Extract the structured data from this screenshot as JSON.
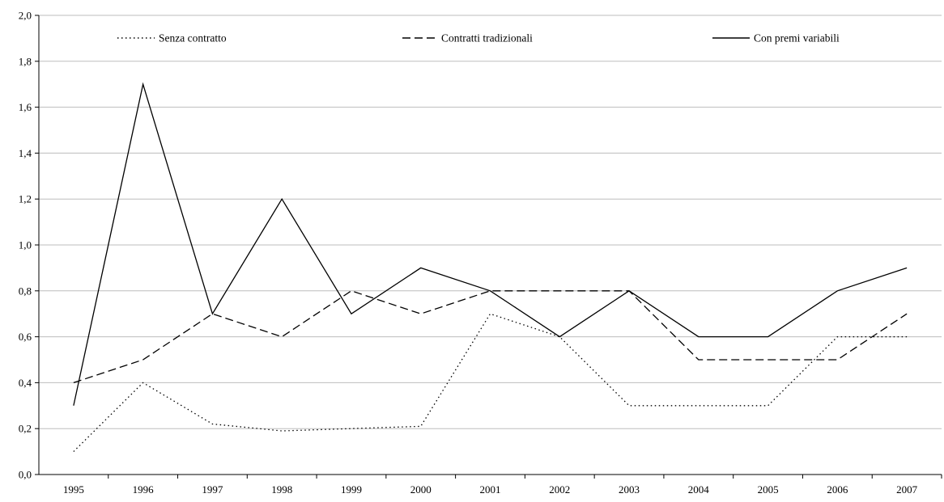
{
  "chart_data": {
    "type": "line",
    "title": "",
    "xlabel": "",
    "ylabel": "",
    "categories": [
      "1995",
      "1996",
      "1997",
      "1998",
      "1999",
      "2000",
      "2001",
      "2002",
      "2003",
      "2004",
      "2005",
      "2006",
      "2007"
    ],
    "ylim": [
      0,
      2.0
    ],
    "yticks": [
      0.0,
      0.2,
      0.4,
      0.6,
      0.8,
      1.0,
      1.2,
      1.4,
      1.6,
      1.8,
      2.0
    ],
    "ytick_labels": [
      "0,0",
      "0,2",
      "0,4",
      "0,6",
      "0,8",
      "1,0",
      "1,2",
      "1,4",
      "1,6",
      "1,8",
      "2,0"
    ],
    "grid": "horizontal",
    "legend": "top",
    "series": [
      {
        "name": "Senza contratto",
        "dash": "dotted",
        "color": "#000000",
        "values": [
          0.1,
          0.4,
          0.22,
          0.19,
          0.2,
          0.21,
          0.7,
          0.6,
          0.3,
          0.3,
          0.3,
          0.6,
          0.6
        ]
      },
      {
        "name": "Contratti tradizionali",
        "dash": "dashed",
        "color": "#000000",
        "values": [
          0.4,
          0.5,
          0.7,
          0.6,
          0.8,
          0.7,
          0.8,
          0.8,
          0.8,
          0.5,
          0.5,
          0.5,
          0.7
        ]
      },
      {
        "name": "Con premi variabili",
        "dash": "solid",
        "color": "#000000",
        "values": [
          0.3,
          1.7,
          0.7,
          1.2,
          0.7,
          0.9,
          0.8,
          0.6,
          0.8,
          0.6,
          0.6,
          0.8,
          0.9
        ]
      }
    ]
  }
}
